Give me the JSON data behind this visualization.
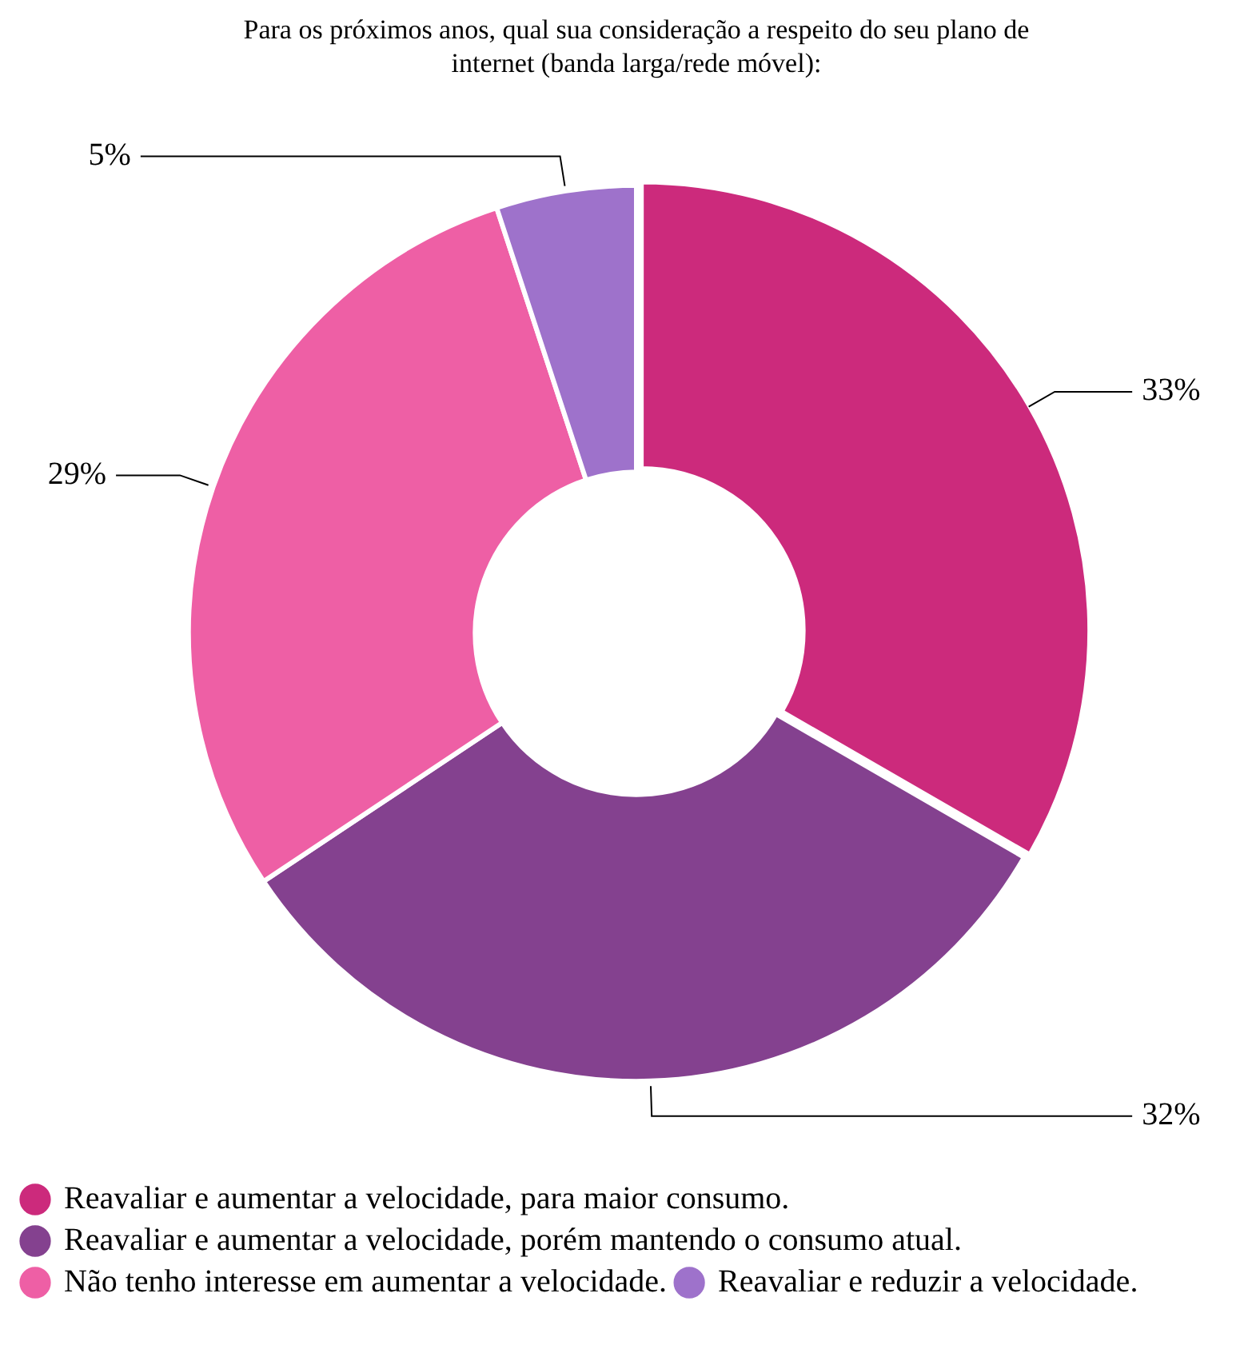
{
  "chart_data": {
    "type": "donut",
    "title": "Para os próximos anos, qual sua consideração a respeito do seu plano de internet (banda larga/rede móvel):",
    "categories": [
      "Reavaliar e aumentar a velocidade, para maior consumo.",
      "Reavaliar e aumentar a velocidade, porém mantendo o consumo atual.",
      "Não tenho interesse em aumentar a velocidade.",
      "Reavaliar e reduzir a velocidade."
    ],
    "values": [
      33,
      32,
      29,
      5
    ],
    "colors": [
      "#cc2a7c",
      "#84418f",
      "#ee5fa5",
      "#9e72cb"
    ],
    "value_labels": [
      "33%",
      "32%",
      "29%",
      "5%"
    ],
    "legend": "bottom"
  }
}
